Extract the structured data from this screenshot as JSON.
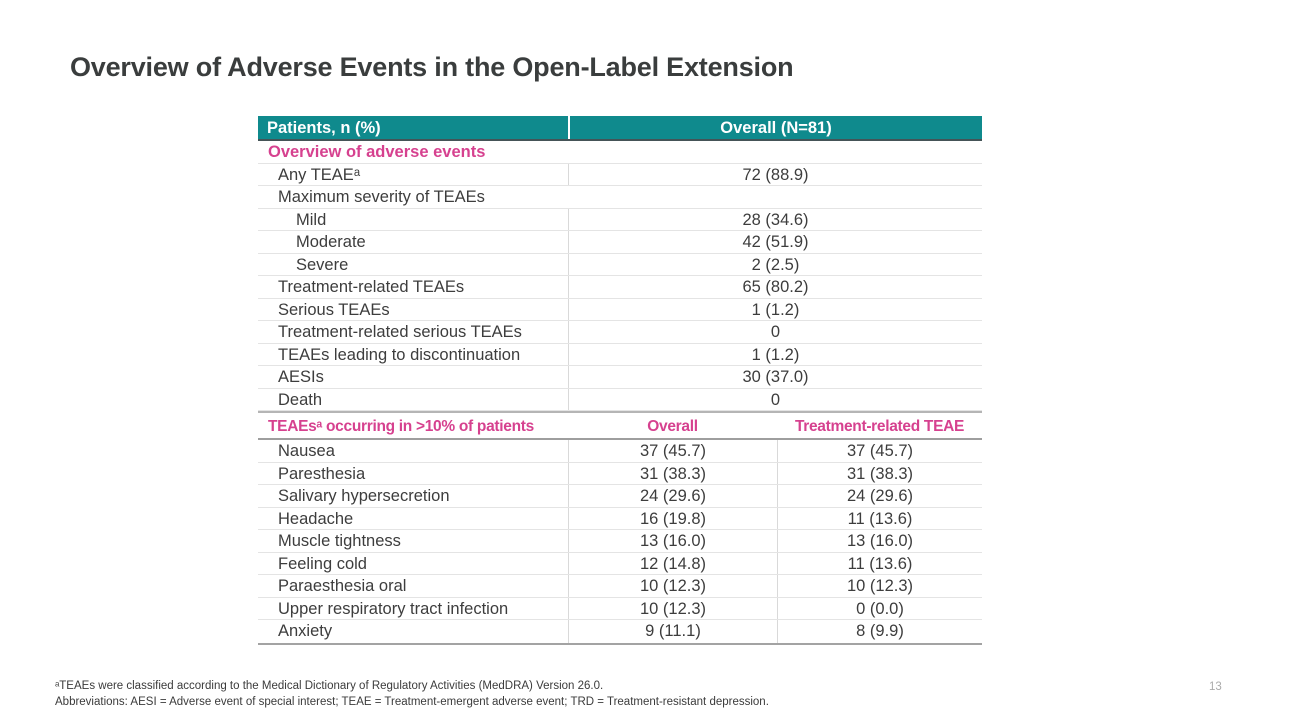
{
  "title": "Overview of Adverse Events in the Open-Label Extension",
  "colors": {
    "header_teal": "#0f8a8d",
    "section_pink": "#d6418f",
    "title_text": "#3a3d3d",
    "body_text": "#3d3d3d"
  },
  "table": {
    "header": {
      "col1": "Patients, n (%)",
      "col2": "Overall (N=81)"
    },
    "section1": {
      "title": "Overview of adverse events",
      "rows": [
        {
          "label": "Any TEAEᵃ",
          "value": "72 (88.9)"
        },
        {
          "label": "Maximum severity of TEAEs",
          "value": ""
        },
        {
          "label": "Mild",
          "value": "28 (34.6)"
        },
        {
          "label": "Moderate",
          "value": "42 (51.9)"
        },
        {
          "label": "Severe",
          "value": "2 (2.5)"
        },
        {
          "label": "Treatment-related TEAEs",
          "value": "65 (80.2)"
        },
        {
          "label": "Serious TEAEs",
          "value": "1 (1.2)"
        },
        {
          "label": "Treatment-related serious TEAEs",
          "value": "0"
        },
        {
          "label": "TEAEs leading to discontinuation",
          "value": "1 (1.2)"
        },
        {
          "label": "AESIs",
          "value": "30 (37.0)"
        },
        {
          "label": "Death",
          "value": "0"
        }
      ]
    },
    "section2": {
      "title": "TEAEsᵃ occurring in >10% of patients",
      "col_overall": "Overall",
      "col_treatment": "Treatment-related TEAE",
      "rows": [
        {
          "label": "Nausea",
          "overall": "37 (45.7)",
          "treatment": "37 (45.7)"
        },
        {
          "label": "Paresthesia",
          "overall": "31 (38.3)",
          "treatment": "31 (38.3)"
        },
        {
          "label": "Salivary hypersecretion",
          "overall": "24 (29.6)",
          "treatment": "24 (29.6)"
        },
        {
          "label": "Headache",
          "overall": "16 (19.8)",
          "treatment": "11 (13.6)"
        },
        {
          "label": "Muscle tightness",
          "overall": "13 (16.0)",
          "treatment": "13 (16.0)"
        },
        {
          "label": "Feeling cold",
          "overall": "12 (14.8)",
          "treatment": "11 (13.6)"
        },
        {
          "label": "Paraesthesia oral",
          "overall": "10 (12.3)",
          "treatment": "10 (12.3)"
        },
        {
          "label": "Upper respiratory tract infection",
          "overall": "10 (12.3)",
          "treatment": "0 (0.0)"
        },
        {
          "label": "Anxiety",
          "overall": "9 (11.1)",
          "treatment": "8 (9.9)"
        }
      ]
    }
  },
  "footnotes": {
    "line1": "ᵃTEAEs were classified according to the Medical Dictionary of Regulatory Activities (MedDRA) Version 26.0.",
    "line2": "Abbreviations: AESI = Adverse event of special interest; TEAE = Treatment-emergent adverse event; TRD = Treatment-resistant depression."
  },
  "page_number": "13"
}
